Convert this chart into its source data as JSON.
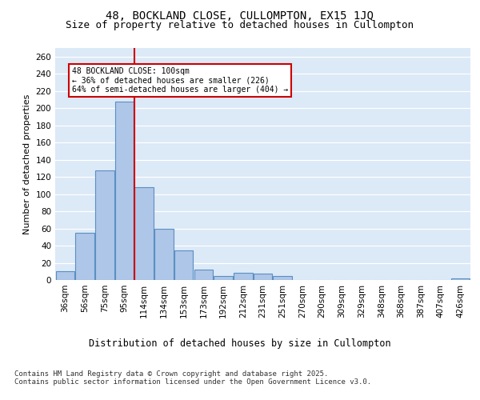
{
  "title1": "48, BOCKLAND CLOSE, CULLOMPTON, EX15 1JQ",
  "title2": "Size of property relative to detached houses in Cullompton",
  "xlabel": "Distribution of detached houses by size in Cullompton",
  "ylabel": "Number of detached properties",
  "categories": [
    "36sqm",
    "56sqm",
    "75sqm",
    "95sqm",
    "114sqm",
    "134sqm",
    "153sqm",
    "173sqm",
    "192sqm",
    "212sqm",
    "231sqm",
    "251sqm",
    "270sqm",
    "290sqm",
    "309sqm",
    "329sqm",
    "348sqm",
    "368sqm",
    "387sqm",
    "407sqm",
    "426sqm"
  ],
  "values": [
    10,
    55,
    128,
    208,
    108,
    60,
    34,
    12,
    5,
    8,
    7,
    5,
    0,
    0,
    0,
    0,
    0,
    0,
    0,
    0,
    2
  ],
  "bar_color": "#aec6e8",
  "bar_edge_color": "#5a8fc2",
  "bar_edge_width": 0.8,
  "vline_x": 3.5,
  "vline_color": "#cc0000",
  "annotation_text": "48 BOCKLAND CLOSE: 100sqm\n← 36% of detached houses are smaller (226)\n64% of semi-detached houses are larger (404) →",
  "annotation_box_color": "#cc0000",
  "ylim": [
    0,
    270
  ],
  "yticks": [
    0,
    20,
    40,
    60,
    80,
    100,
    120,
    140,
    160,
    180,
    200,
    220,
    240,
    260
  ],
  "bg_color": "#dce9f7",
  "grid_color": "#ffffff",
  "footnote": "Contains HM Land Registry data © Crown copyright and database right 2025.\nContains public sector information licensed under the Open Government Licence v3.0.",
  "title1_fontsize": 10,
  "title2_fontsize": 9,
  "xlabel_fontsize": 8.5,
  "ylabel_fontsize": 8,
  "footnote_fontsize": 6.5,
  "tick_fontsize": 7.5,
  "ytick_fontsize": 7.5
}
